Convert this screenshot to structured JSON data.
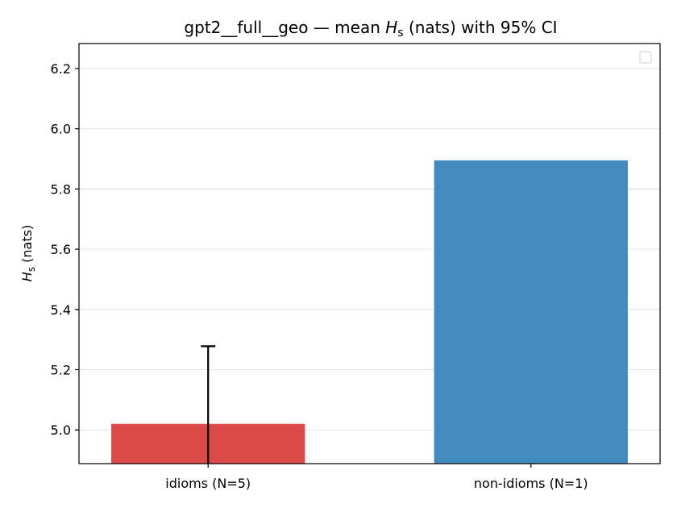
{
  "chart_data": {
    "type": "bar",
    "title_prefix": "gpt2__full__geo — mean ",
    "title_symbol": "H",
    "title_subscript": "s",
    "title_suffix": " (nats) with 95% CI",
    "ylabel_symbol": "H",
    "ylabel_subscript": "s",
    "ylabel_suffix": " (nats)",
    "categories": [
      "idioms (N=5)",
      "non-idioms (N=1)"
    ],
    "values": [
      5.02,
      5.895
    ],
    "ci_upper": [
      5.278,
      null
    ],
    "colors": [
      "#dc4a48",
      "#428bbf"
    ],
    "ylim": [
      4.888,
      6.283
    ],
    "yticks": [
      "5.0",
      "5.2",
      "5.4",
      "5.6",
      "5.8",
      "6.0",
      "6.2"
    ],
    "grid": "y",
    "legend": "top-right (empty)"
  }
}
